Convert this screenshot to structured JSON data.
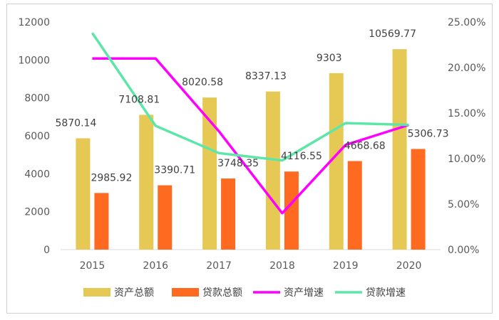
{
  "chart_data": {
    "type": "bar",
    "title": "",
    "categories": [
      "2015",
      "2016",
      "2017",
      "2018",
      "2019",
      "2020"
    ],
    "series": [
      {
        "name": "资产总额",
        "type": "bar",
        "axis": "left",
        "color": "#E6C955",
        "values": [
          5870.14,
          7108.81,
          8020.58,
          8337.13,
          9303,
          10569.77
        ],
        "labels": [
          "5870.14",
          "7108.81",
          "8020.58",
          "8337.13",
          "9303",
          "10569.77"
        ]
      },
      {
        "name": "贷款总额",
        "type": "bar",
        "axis": "left",
        "color": "#FF6A21",
        "values": [
          2985.92,
          3390.71,
          3748.35,
          4116.55,
          4668.68,
          5306.73
        ],
        "labels": [
          "2985.92",
          "3390.71",
          "3748.35",
          "4116.55",
          "4668.68",
          "5306.73"
        ]
      },
      {
        "name": "资产增速",
        "type": "line",
        "axis": "right",
        "color": "#FF00FF",
        "values": [
          0.21,
          0.21,
          0.13,
          0.04,
          0.115,
          0.137
        ]
      },
      {
        "name": "贷款增速",
        "type": "line",
        "axis": "right",
        "color": "#5CE6A8",
        "values": [
          0.238,
          0.136,
          0.106,
          0.098,
          0.139,
          0.137
        ]
      }
    ],
    "y_left": {
      "min": 0,
      "max": 12000,
      "ticks": [
        "0",
        "2000",
        "4000",
        "6000",
        "8000",
        "10000",
        "12000"
      ]
    },
    "y_right": {
      "min": 0,
      "max": 0.25,
      "ticks": [
        "0.00%",
        "5.00%",
        "10.00%",
        "15.00%",
        "20.00%",
        "25.00%"
      ]
    },
    "grid": false,
    "legend_position": "bottom"
  }
}
